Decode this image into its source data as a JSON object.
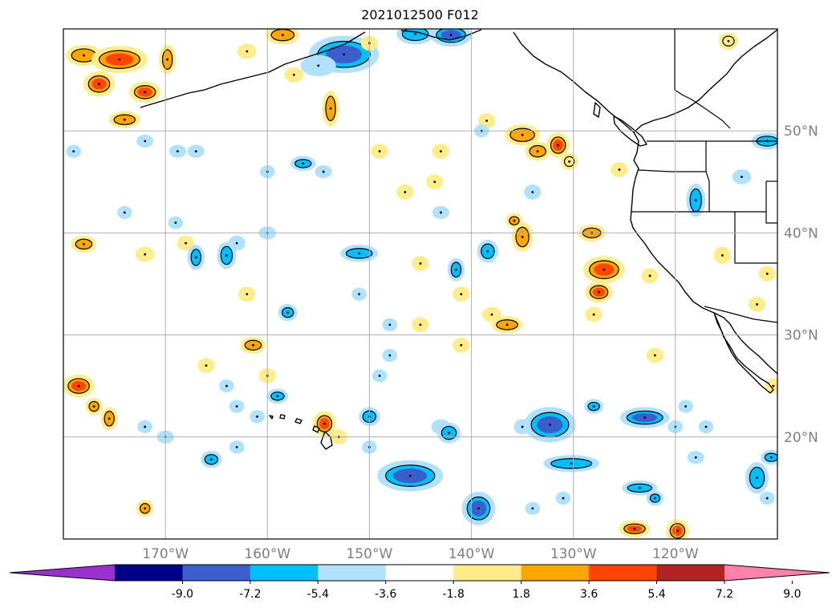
{
  "title": "2021012500 F012",
  "map": {
    "projection": "plate-carree",
    "lon_range": [
      -180,
      -110
    ],
    "lat_range": [
      10,
      60
    ],
    "grid": true,
    "lon_labels": [
      {
        "lon": -170,
        "text": "170°W"
      },
      {
        "lon": -160,
        "text": "160°W"
      },
      {
        "lon": -150,
        "text": "150°W"
      },
      {
        "lon": -140,
        "text": "140°W"
      },
      {
        "lon": -130,
        "text": "130°W"
      },
      {
        "lon": -120,
        "text": "120°W"
      }
    ],
    "lat_labels": [
      {
        "lat": 50,
        "text": "50°N"
      },
      {
        "lat": 40,
        "text": "40°N"
      },
      {
        "lat": 30,
        "text": "30°N"
      },
      {
        "lat": 20,
        "text": "20°N"
      }
    ]
  },
  "colorbar": {
    "extend": "both",
    "colors": [
      "#9932cc",
      "#00008b",
      "#3a5fcd",
      "#00bfff",
      "#b0e2ff",
      "#ffffff",
      "#ffec8b",
      "#ffa500",
      "#ff4500",
      "#b22222",
      "#ff82ab"
    ],
    "ticks": [
      "-9.0",
      "-7.2",
      "-5.4",
      "-3.6",
      "-1.8",
      "1.8",
      "3.6",
      "5.4",
      "7.2",
      "9.0"
    ]
  },
  "blobs": [
    {
      "lon": -152.5,
      "lat": 57.5,
      "v": -5.8,
      "rx": 3.2,
      "ry": 1.6
    },
    {
      "lon": -145.5,
      "lat": 59.5,
      "v": -4.5,
      "rx": 1.6,
      "ry": 0.8
    },
    {
      "lon": -142,
      "lat": 59.4,
      "v": -5.4,
      "rx": 1.8,
      "ry": 0.9
    },
    {
      "lon": -178,
      "lat": 57.4,
      "v": 4.6,
      "rx": 1.5,
      "ry": 0.8
    },
    {
      "lon": -174.5,
      "lat": 57.0,
      "v": 6.2,
      "rx": 2.5,
      "ry": 1.1
    },
    {
      "lon": -176.5,
      "lat": 54.6,
      "v": 6.8,
      "rx": 1.3,
      "ry": 1.0
    },
    {
      "lon": -172,
      "lat": 53.8,
      "v": 6.0,
      "rx": 1.3,
      "ry": 0.8
    },
    {
      "lon": -174,
      "lat": 51.1,
      "v": 4.8,
      "rx": 1.3,
      "ry": 0.6
    },
    {
      "lon": -169.8,
      "lat": 57.0,
      "v": 3.8,
      "rx": 0.6,
      "ry": 1.2
    },
    {
      "lon": -158.5,
      "lat": 59.4,
      "v": 4.4,
      "rx": 1.4,
      "ry": 0.7
    },
    {
      "lon": -162,
      "lat": 57.8,
      "v": 2.6,
      "rx": 0.7,
      "ry": 0.5
    },
    {
      "lon": -157.4,
      "lat": 55.5,
      "v": 2.4,
      "rx": 0.7,
      "ry": 0.5
    },
    {
      "lon": -155,
      "lat": 56.4,
      "v": -2.8,
      "rx": 1.5,
      "ry": 0.8
    },
    {
      "lon": -153.8,
      "lat": 52.2,
      "v": 3.8,
      "rx": 0.6,
      "ry": 1.5
    },
    {
      "lon": -150,
      "lat": 58.6,
      "v": 2.2,
      "rx": 0.6,
      "ry": 0.5
    },
    {
      "lon": -138.5,
      "lat": 51.0,
      "v": 2.4,
      "rx": 0.6,
      "ry": 0.5
    },
    {
      "lon": -135,
      "lat": 49.6,
      "v": 4.0,
      "rx": 1.5,
      "ry": 0.8
    },
    {
      "lon": -133.5,
      "lat": 48.0,
      "v": 4.8,
      "rx": 1.0,
      "ry": 0.7
    },
    {
      "lon": -131.5,
      "lat": 48.6,
      "v": 5.4,
      "rx": 0.9,
      "ry": 1.0
    },
    {
      "lon": -130.4,
      "lat": 47.0,
      "v": 3.4,
      "rx": 0.6,
      "ry": 0.6
    },
    {
      "lon": -114.8,
      "lat": 58.8,
      "v": 3.2,
      "rx": 0.7,
      "ry": 0.6
    },
    {
      "lon": -111,
      "lat": 49.0,
      "v": -3.6,
      "rx": 1.3,
      "ry": 0.6
    },
    {
      "lon": -113.5,
      "lat": 45.5,
      "v": -2.2,
      "rx": 0.7,
      "ry": 0.5
    },
    {
      "lon": -118,
      "lat": 43.2,
      "v": -4.6,
      "rx": 0.7,
      "ry": 1.4
    },
    {
      "lon": -125.5,
      "lat": 46.2,
      "v": 2.0,
      "rx": 0.6,
      "ry": 0.5
    },
    {
      "lon": -178,
      "lat": 38.9,
      "v": 3.6,
      "rx": 1.0,
      "ry": 0.6
    },
    {
      "lon": -172,
      "lat": 37.9,
      "v": 2.8,
      "rx": 0.7,
      "ry": 0.5
    },
    {
      "lon": -168,
      "lat": 39.0,
      "v": 2.4,
      "rx": 0.6,
      "ry": 0.5
    },
    {
      "lon": -167,
      "lat": 37.6,
      "v": -4.0,
      "rx": 0.6,
      "ry": 1.0
    },
    {
      "lon": -164,
      "lat": 37.8,
      "v": -3.8,
      "rx": 0.7,
      "ry": 1.1
    },
    {
      "lon": -163,
      "lat": 39.0,
      "v": -2.8,
      "rx": 0.6,
      "ry": 0.5
    },
    {
      "lon": -160,
      "lat": 40.0,
      "v": -2.0,
      "rx": 0.6,
      "ry": 0.4
    },
    {
      "lon": -151,
      "lat": 38.0,
      "v": -4.2,
      "rx": 1.6,
      "ry": 0.6
    },
    {
      "lon": -145,
      "lat": 37.0,
      "v": 2.6,
      "rx": 0.6,
      "ry": 0.5
    },
    {
      "lon": -141.5,
      "lat": 36.4,
      "v": -4.4,
      "rx": 0.6,
      "ry": 0.9
    },
    {
      "lon": -138.4,
      "lat": 38.2,
      "v": -4.0,
      "rx": 0.8,
      "ry": 0.9
    },
    {
      "lon": -135,
      "lat": 39.6,
      "v": 5.2,
      "rx": 0.8,
      "ry": 1.2
    },
    {
      "lon": -135.8,
      "lat": 41.2,
      "v": 4.0,
      "rx": 0.6,
      "ry": 0.5
    },
    {
      "lon": -128.2,
      "lat": 40.0,
      "v": 4.2,
      "rx": 1.1,
      "ry": 0.6
    },
    {
      "lon": -127,
      "lat": 36.4,
      "v": 6.2,
      "rx": 1.8,
      "ry": 1.1
    },
    {
      "lon": -127.5,
      "lat": 34.2,
      "v": 5.8,
      "rx": 1.1,
      "ry": 0.8
    },
    {
      "lon": -122.5,
      "lat": 35.8,
      "v": 2.6,
      "rx": 0.6,
      "ry": 0.5
    },
    {
      "lon": -115.4,
      "lat": 37.8,
      "v": 2.8,
      "rx": 0.6,
      "ry": 0.6
    },
    {
      "lon": -111,
      "lat": 36.0,
      "v": 2.6,
      "rx": 0.6,
      "ry": 0.5
    },
    {
      "lon": -112,
      "lat": 33.0,
      "v": 2.4,
      "rx": 0.6,
      "ry": 0.5
    },
    {
      "lon": -134,
      "lat": 44.0,
      "v": -2.4,
      "rx": 0.6,
      "ry": 0.5
    },
    {
      "lon": -143.6,
      "lat": 45.0,
      "v": 2.4,
      "rx": 0.6,
      "ry": 0.5
    },
    {
      "lon": -143,
      "lat": 42.0,
      "v": -2.0,
      "rx": 0.6,
      "ry": 0.4
    },
    {
      "lon": -146.5,
      "lat": 44.0,
      "v": 2.6,
      "rx": 0.6,
      "ry": 0.5
    },
    {
      "lon": -156.5,
      "lat": 46.8,
      "v": -3.8,
      "rx": 1.0,
      "ry": 0.5
    },
    {
      "lon": -154.5,
      "lat": 46.0,
      "v": -2.4,
      "rx": 0.6,
      "ry": 0.4
    },
    {
      "lon": -160,
      "lat": 46.0,
      "v": -2.0,
      "rx": 0.5,
      "ry": 0.4
    },
    {
      "lon": -149,
      "lat": 48.0,
      "v": 2.4,
      "rx": 0.6,
      "ry": 0.5
    },
    {
      "lon": -143,
      "lat": 48.0,
      "v": 2.6,
      "rx": 0.6,
      "ry": 0.5
    },
    {
      "lon": -139,
      "lat": 50.0,
      "v": -2.0,
      "rx": 0.5,
      "ry": 0.4
    },
    {
      "lon": -172,
      "lat": 49.0,
      "v": -2.0,
      "rx": 0.6,
      "ry": 0.4
    },
    {
      "lon": -168.8,
      "lat": 48.0,
      "v": -2.0,
      "rx": 0.6,
      "ry": 0.4
    },
    {
      "lon": -167,
      "lat": 48.0,
      "v": -2.0,
      "rx": 0.6,
      "ry": 0.4
    },
    {
      "lon": -179,
      "lat": 48.0,
      "v": -2.0,
      "rx": 0.5,
      "ry": 0.4
    },
    {
      "lon": -174,
      "lat": 42.0,
      "v": -1.9,
      "rx": 0.5,
      "ry": 0.4
    },
    {
      "lon": -169,
      "lat": 41.0,
      "v": -1.9,
      "rx": 0.5,
      "ry": 0.4
    },
    {
      "lon": -158,
      "lat": 32.2,
      "v": -4.0,
      "rx": 0.7,
      "ry": 0.6
    },
    {
      "lon": -162,
      "lat": 34.0,
      "v": 2.4,
      "rx": 0.6,
      "ry": 0.5
    },
    {
      "lon": -151,
      "lat": 34.0,
      "v": -2.0,
      "rx": 0.5,
      "ry": 0.4
    },
    {
      "lon": -148,
      "lat": 31.0,
      "v": -2.0,
      "rx": 0.5,
      "ry": 0.4
    },
    {
      "lon": -145,
      "lat": 31.0,
      "v": 2.6,
      "rx": 0.6,
      "ry": 0.5
    },
    {
      "lon": -141,
      "lat": 34.0,
      "v": 2.4,
      "rx": 0.6,
      "ry": 0.5
    },
    {
      "lon": -138,
      "lat": 32.0,
      "v": 2.6,
      "rx": 0.7,
      "ry": 0.5
    },
    {
      "lon": -136.5,
      "lat": 31.0,
      "v": 4.6,
      "rx": 1.3,
      "ry": 0.6
    },
    {
      "lon": -128,
      "lat": 32.0,
      "v": 2.4,
      "rx": 0.6,
      "ry": 0.5
    },
    {
      "lon": -161.4,
      "lat": 29.0,
      "v": 4.2,
      "rx": 1.0,
      "ry": 0.6
    },
    {
      "lon": -166,
      "lat": 27.0,
      "v": 2.4,
      "rx": 0.6,
      "ry": 0.5
    },
    {
      "lon": -160,
      "lat": 26.0,
      "v": 2.4,
      "rx": 0.6,
      "ry": 0.5
    },
    {
      "lon": -149,
      "lat": 26.0,
      "v": -2.0,
      "rx": 0.5,
      "ry": 0.4
    },
    {
      "lon": -148,
      "lat": 28.0,
      "v": -2.0,
      "rx": 0.5,
      "ry": 0.4
    },
    {
      "lon": -141,
      "lat": 29.0,
      "v": 2.6,
      "rx": 0.6,
      "ry": 0.5
    },
    {
      "lon": -122,
      "lat": 28.0,
      "v": 2.4,
      "rx": 0.6,
      "ry": 0.5
    },
    {
      "lon": -178.5,
      "lat": 25.0,
      "v": 5.4,
      "rx": 1.3,
      "ry": 0.9
    },
    {
      "lon": -177,
      "lat": 23.0,
      "v": 4.6,
      "rx": 0.6,
      "ry": 0.6
    },
    {
      "lon": -175.5,
      "lat": 21.8,
      "v": 5.0,
      "rx": 0.6,
      "ry": 0.9
    },
    {
      "lon": -172,
      "lat": 21.0,
      "v": -2.0,
      "rx": 0.5,
      "ry": 0.4
    },
    {
      "lon": -170,
      "lat": 20.0,
      "v": -2.4,
      "rx": 0.6,
      "ry": 0.4
    },
    {
      "lon": -164,
      "lat": 25.0,
      "v": -2.0,
      "rx": 0.5,
      "ry": 0.4
    },
    {
      "lon": -163,
      "lat": 23.0,
      "v": -2.0,
      "rx": 0.5,
      "ry": 0.4
    },
    {
      "lon": -161,
      "lat": 22.0,
      "v": -2.0,
      "rx": 0.5,
      "ry": 0.4
    },
    {
      "lon": -159,
      "lat": 24.0,
      "v": -3.8,
      "rx": 0.8,
      "ry": 0.5
    },
    {
      "lon": -154.4,
      "lat": 21.3,
      "v": 6.0,
      "rx": 0.9,
      "ry": 1.0
    },
    {
      "lon": -153,
      "lat": 20.0,
      "v": 2.4,
      "rx": 0.6,
      "ry": 0.5
    },
    {
      "lon": -150,
      "lat": 22.0,
      "v": -4.4,
      "rx": 0.8,
      "ry": 0.7
    },
    {
      "lon": -150,
      "lat": 19.0,
      "v": -2.0,
      "rx": 0.5,
      "ry": 0.4
    },
    {
      "lon": -163,
      "lat": 19.0,
      "v": -2.4,
      "rx": 0.5,
      "ry": 0.4
    },
    {
      "lon": -165.5,
      "lat": 17.8,
      "v": -3.8,
      "rx": 0.8,
      "ry": 0.6
    },
    {
      "lon": -172,
      "lat": 13.0,
      "v": 3.8,
      "rx": 0.6,
      "ry": 0.6
    },
    {
      "lon": -146,
      "lat": 16.2,
      "v": -6.6,
      "rx": 3.0,
      "ry": 1.3
    },
    {
      "lon": -143,
      "lat": 21.0,
      "v": -2.8,
      "rx": 0.7,
      "ry": 0.5
    },
    {
      "lon": -142.2,
      "lat": 20.4,
      "v": -3.6,
      "rx": 0.9,
      "ry": 0.8
    },
    {
      "lon": -139.3,
      "lat": 13.0,
      "v": -5.6,
      "rx": 1.4,
      "ry": 1.4
    },
    {
      "lon": -134,
      "lat": 13.0,
      "v": -2.0,
      "rx": 0.5,
      "ry": 0.4
    },
    {
      "lon": -131,
      "lat": 14.0,
      "v": -2.0,
      "rx": 0.5,
      "ry": 0.4
    },
    {
      "lon": -132.3,
      "lat": 21.2,
      "v": -7.0,
      "rx": 2.3,
      "ry": 1.5
    },
    {
      "lon": -135,
      "lat": 21.0,
      "v": -2.6,
      "rx": 0.6,
      "ry": 0.5
    },
    {
      "lon": -130.2,
      "lat": 17.4,
      "v": -4.0,
      "rx": 2.5,
      "ry": 0.6
    },
    {
      "lon": -128,
      "lat": 23.0,
      "v": -3.6,
      "rx": 0.7,
      "ry": 0.5
    },
    {
      "lon": -123,
      "lat": 21.9,
      "v": -5.8,
      "rx": 2.2,
      "ry": 0.8
    },
    {
      "lon": -120,
      "lat": 21.0,
      "v": -2.2,
      "rx": 0.5,
      "ry": 0.4
    },
    {
      "lon": -119,
      "lat": 23.0,
      "v": -2.0,
      "rx": 0.5,
      "ry": 0.4
    },
    {
      "lon": -117,
      "lat": 21.0,
      "v": -2.0,
      "rx": 0.5,
      "ry": 0.4
    },
    {
      "lon": -118,
      "lat": 18.0,
      "v": -2.6,
      "rx": 0.6,
      "ry": 0.4
    },
    {
      "lon": -123.5,
      "lat": 15.0,
      "v": -3.8,
      "rx": 1.5,
      "ry": 0.5
    },
    {
      "lon": -122,
      "lat": 14.0,
      "v": -3.6,
      "rx": 0.6,
      "ry": 0.5
    },
    {
      "lon": -112,
      "lat": 16.0,
      "v": -4.4,
      "rx": 0.9,
      "ry": 1.3
    },
    {
      "lon": -110.6,
      "lat": 18.0,
      "v": -4.0,
      "rx": 0.8,
      "ry": 0.5
    },
    {
      "lon": -111,
      "lat": 14.0,
      "v": -2.2,
      "rx": 0.5,
      "ry": 0.4
    },
    {
      "lon": -124,
      "lat": 11.0,
      "v": 6.0,
      "rx": 1.3,
      "ry": 0.6
    },
    {
      "lon": -119.8,
      "lat": 10.8,
      "v": 6.0,
      "rx": 0.9,
      "ry": 0.9
    },
    {
      "lon": -110.4,
      "lat": 25.0,
      "v": 3.0,
      "rx": 0.6,
      "ry": 0.5
    }
  ]
}
